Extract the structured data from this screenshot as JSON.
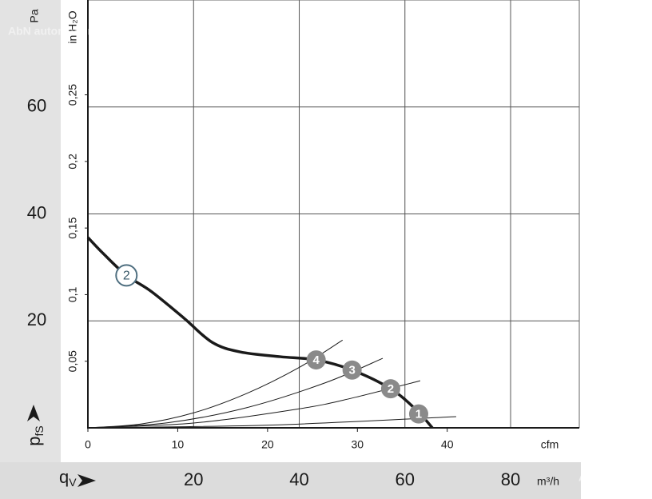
{
  "chart_data": {
    "type": "line",
    "ylabel_symbol": "p",
    "ylabel_subscript": "fS",
    "yunit": "Pa",
    "y2label": "in H₂O",
    "xlabel_symbol": "q",
    "xlabel_subscript": "V",
    "xunit": "m³/h",
    "x2unit": "cfm",
    "watermark": "AbN automation",
    "xlim": [
      0,
      93
    ],
    "xticks": [
      20,
      40,
      60,
      80
    ],
    "ylim": [
      0,
      80
    ],
    "yticks": [
      20,
      40,
      60
    ],
    "x2lim": [
      0,
      54.7
    ],
    "x2ticks": [
      0,
      10,
      20,
      30,
      40
    ],
    "y2lim": [
      0,
      0.3212
    ],
    "y2ticks": [
      {
        "value": 0.05,
        "label": "0,05"
      },
      {
        "value": 0.1,
        "label": "0,1"
      },
      {
        "value": 0.15,
        "label": "0,15"
      },
      {
        "value": 0.2,
        "label": "0,2"
      },
      {
        "value": 0.25,
        "label": "0,25"
      }
    ],
    "grid": true,
    "series": [
      {
        "color": "#1a1a1a",
        "x": [
          0,
          3,
          7.3,
          12,
          18.2,
          23.5,
          28.8,
          36.4,
          43.2,
          50,
          57.3,
          62.1,
          65.2
        ],
        "values": [
          35.6,
          32.5,
          28.5,
          25.5,
          20.5,
          16,
          14.2,
          13.3,
          12.7,
          10.8,
          7.3,
          3.4,
          0
        ]
      },
      {
        "color": "#1a1a1a",
        "x": [
          0,
          10,
          20,
          30,
          40,
          48.2
        ],
        "values": [
          0,
          0.71,
          2.8,
          6.4,
          11.3,
          16.4
        ]
      },
      {
        "color": "#1a1a1a",
        "x": [
          0,
          15,
          30,
          45,
          55.8
        ],
        "values": [
          0,
          0.94,
          3.76,
          8.45,
          13
        ]
      },
      {
        "color": "#1a1a1a",
        "x": [
          0,
          20,
          40,
          50,
          62.9
        ],
        "values": [
          0,
          0.89,
          3.56,
          5.56,
          8.8
        ]
      },
      {
        "color": "#1a1a1a",
        "x": [
          0,
          35,
          69.7
        ],
        "values": [
          0,
          0.53,
          2.1
        ]
      }
    ],
    "curve_label": {
      "label": "2",
      "x": 7.3,
      "y": 28.5
    },
    "markers": [
      {
        "label": "4",
        "x": 43.2,
        "y": 12.7
      },
      {
        "label": "3",
        "x": 50,
        "y": 10.8
      },
      {
        "label": "2",
        "x": 57.3,
        "y": 7.3
      },
      {
        "label": "1",
        "x": 62.6,
        "y": 2.6
      }
    ]
  }
}
